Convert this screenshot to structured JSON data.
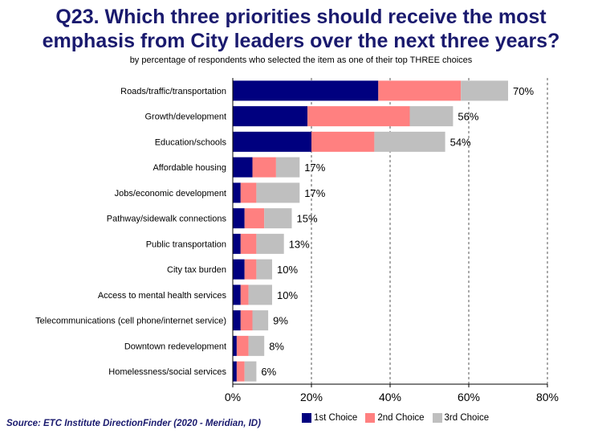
{
  "title_line1": "Q23. Which three priorities should receive the most",
  "title_line2": "emphasis from City leaders over the next three years?",
  "subtitle": "by percentage of respondents who selected the item as one of their top THREE choices",
  "source": "Source:  ETC Institute DirectionFinder (2020 - Meridian, ID)",
  "colors": {
    "first": "#00007f",
    "second": "#ff8080",
    "third": "#bfbfbf"
  },
  "chart_data": {
    "type": "bar",
    "orientation": "horizontal",
    "stacked": true,
    "categories": [
      "Roads/traffic/transportation",
      "Growth/development",
      "Education/schools",
      "Affordable housing",
      "Jobs/economic development",
      "Pathway/sidewalk connections",
      "Public transportation",
      "City tax burden",
      "Access to mental health services",
      "Telecommunications (cell phone/internet service)",
      "Downtown redevelopment",
      "Homelessness/social services"
    ],
    "series": [
      {
        "name": "1st Choice",
        "values": [
          37,
          19,
          20,
          5,
          2,
          3,
          2,
          3,
          2,
          2,
          1,
          1
        ]
      },
      {
        "name": "2nd Choice",
        "values": [
          21,
          26,
          16,
          6,
          4,
          5,
          4,
          3,
          2,
          3,
          3,
          2
        ]
      },
      {
        "name": "3rd Choice",
        "values": [
          12,
          11,
          18,
          6,
          11,
          7,
          7,
          4,
          6,
          4,
          4,
          3
        ]
      }
    ],
    "totals": [
      70,
      56,
      54,
      17,
      17,
      15,
      13,
      10,
      10,
      9,
      8,
      6
    ],
    "total_labels": [
      "70%",
      "56%",
      "54%",
      "17%",
      "17%",
      "15%",
      "13%",
      "10%",
      "10%",
      "9%",
      "8%",
      "6%"
    ],
    "xlim": [
      0,
      80
    ],
    "xticks": [
      0,
      20,
      40,
      60,
      80
    ],
    "xtick_labels": [
      "0%",
      "20%",
      "40%",
      "60%",
      "80%"
    ],
    "grid": "vertical dashed",
    "legend_position": "bottom"
  }
}
